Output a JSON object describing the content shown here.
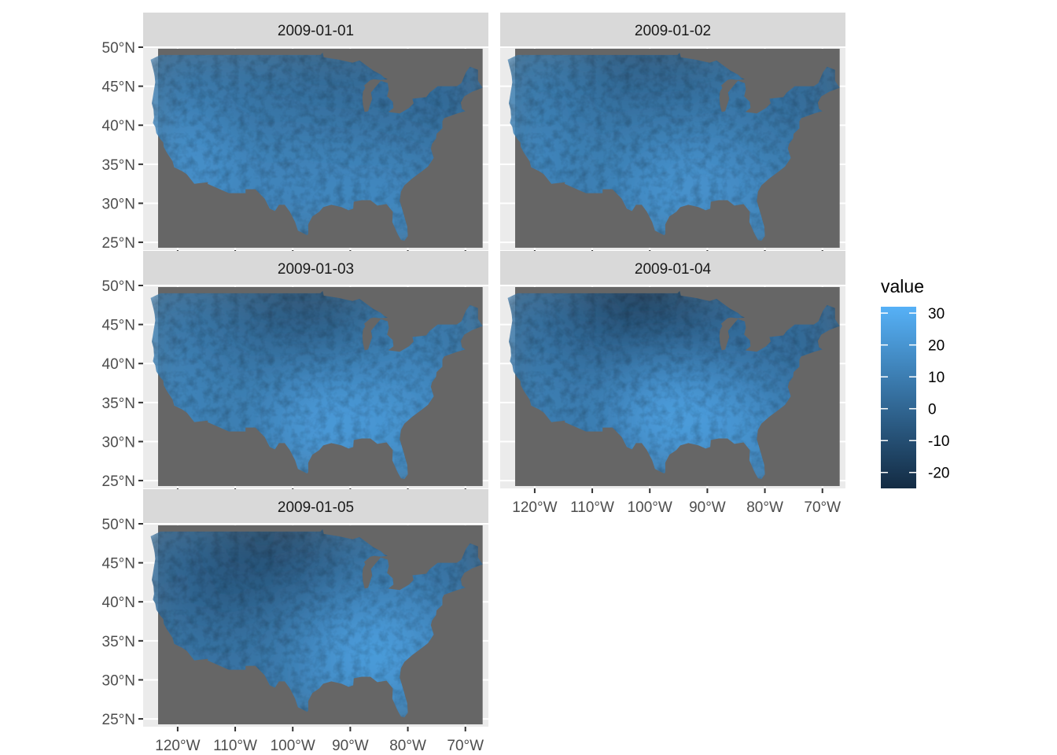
{
  "chart_data": {
    "type": "heatmap",
    "facet_variable": "date",
    "panels": [
      {
        "label": "2009-01-01",
        "pattern": "cold-northeast"
      },
      {
        "label": "2009-01-02",
        "pattern": "cold-north"
      },
      {
        "label": "2009-01-03",
        "pattern": "cold-north-warm-south"
      },
      {
        "label": "2009-01-04",
        "pattern": "very-cold-north-warm-south"
      },
      {
        "label": "2009-01-05",
        "pattern": "cold-northwest-warm-southeast"
      }
    ],
    "x_axis": {
      "xlim": [
        -126,
        -66
      ],
      "ticks": [
        -120,
        -110,
        -100,
        -90,
        -80,
        -70
      ],
      "tick_labels": [
        "120°W",
        "110°W",
        "100°W",
        "90°W",
        "80°W",
        "70°W"
      ]
    },
    "y_axis": {
      "ylim": [
        24,
        50
      ],
      "ticks": [
        25,
        30,
        35,
        40,
        45,
        50
      ],
      "tick_labels": [
        "25°N",
        "30°N",
        "35°N",
        "40°N",
        "45°N",
        "50°N"
      ]
    },
    "legend": {
      "title": "value",
      "position": "right",
      "range": [
        -25,
        32
      ],
      "ticks": [
        30,
        20,
        10,
        0,
        -10,
        -20
      ],
      "tick_labels": [
        "30",
        "20",
        "10",
        "0",
        "-10",
        "-20"
      ],
      "low_color": "#132B43",
      "high_color": "#56B1F7"
    },
    "grid": true,
    "na_color": "#666666",
    "panel_background": "#EBEBEB",
    "strip_background": "#D9D9D9"
  }
}
